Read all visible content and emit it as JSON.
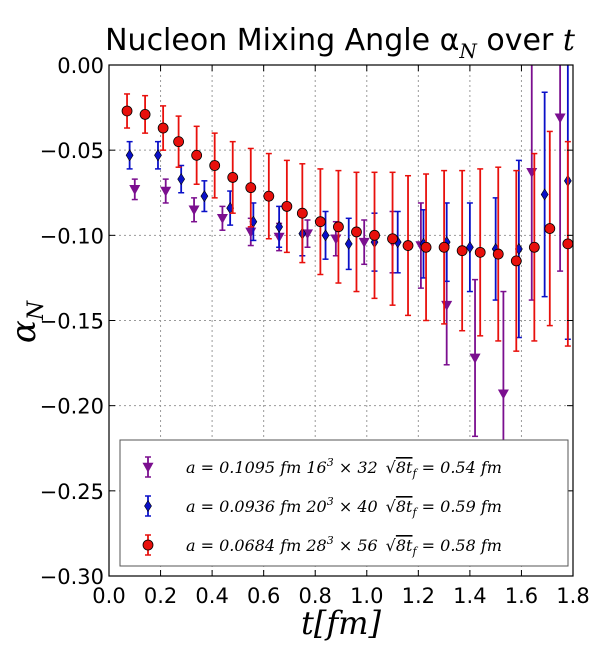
{
  "chart_data": {
    "type": "scatter",
    "title": "Nucleon Mixing Angle α",
    "title_sub": "N",
    "title_suffix": " over ",
    "title_var": "t",
    "xlabel": "t[fm]",
    "ylabel": "α",
    "ylabel_sub": "N",
    "xlim": [
      0.0,
      1.8
    ],
    "ylim": [
      -0.3,
      0.0
    ],
    "grid": true,
    "legend_position": "lower-center",
    "x_ticks": [
      0.0,
      0.2,
      0.4,
      0.6,
      0.8,
      1.0,
      1.2,
      1.4,
      1.6,
      1.8
    ],
    "x_tick_labels": [
      "0.0",
      "0.2",
      "0.4",
      "0.6",
      "0.8",
      "1.0",
      "1.2",
      "1.4",
      "1.6",
      "1.8"
    ],
    "y_ticks": [
      0.0,
      -0.05,
      -0.1,
      -0.15,
      -0.2,
      -0.25,
      -0.3
    ],
    "y_tick_labels": [
      "0.00",
      "−0.05",
      "−0.10",
      "−0.15",
      "−0.20",
      "−0.25",
      "−0.30"
    ],
    "series": [
      {
        "name": "a = 0.1095 fm 16³ × 32 √8t_f = 0.54 fm",
        "legend_main": "a = 0.1095 fm 16",
        "legend_exp": "3",
        "legend_rest": " × 32",
        "legend_sqrt_arg": "8t",
        "legend_sqrt_sub": "f",
        "legend_tail": " = 0.54 fm",
        "color": "#7b0f8f",
        "marker": "triangle-down",
        "points": [
          {
            "x": 0.1,
            "y": -0.073,
            "err": 0.006
          },
          {
            "x": 0.22,
            "y": -0.074,
            "err": 0.007
          },
          {
            "x": 0.33,
            "y": -0.085,
            "err": 0.007
          },
          {
            "x": 0.44,
            "y": -0.09,
            "err": 0.007
          },
          {
            "x": 0.55,
            "y": -0.098,
            "err": 0.008
          },
          {
            "x": 0.66,
            "y": -0.101,
            "err": 0.008
          },
          {
            "x": 0.77,
            "y": -0.099,
            "err": 0.008
          },
          {
            "x": 0.88,
            "y": -0.102,
            "err": 0.01
          },
          {
            "x": 0.99,
            "y": -0.104,
            "err": 0.013
          },
          {
            "x": 1.1,
            "y": -0.104,
            "err": 0.018
          },
          {
            "x": 1.21,
            "y": -0.106,
            "err": 0.025
          },
          {
            "x": 1.31,
            "y": -0.141,
            "err": 0.035
          },
          {
            "x": 1.42,
            "y": -0.172,
            "err": 0.046
          },
          {
            "x": 1.53,
            "y": -0.193,
            "err": 0.06
          },
          {
            "x": 1.64,
            "y": -0.063,
            "err": 0.075
          },
          {
            "x": 1.75,
            "y": -0.031,
            "err": 0.09
          }
        ]
      },
      {
        "name": "a = 0.0936 fm 20³ × 40 √8t_f = 0.59 fm",
        "legend_main": "a = 0.0936 fm 20",
        "legend_exp": "3",
        "legend_rest": " × 40",
        "legend_sqrt_arg": "8t",
        "legend_sqrt_sub": "f",
        "legend_tail": " = 0.59 fm",
        "color": "#0a10c8",
        "marker": "diamond",
        "points": [
          {
            "x": 0.08,
            "y": -0.053,
            "err": 0.008
          },
          {
            "x": 0.19,
            "y": -0.053,
            "err": 0.008
          },
          {
            "x": 0.28,
            "y": -0.067,
            "err": 0.008
          },
          {
            "x": 0.37,
            "y": -0.077,
            "err": 0.009
          },
          {
            "x": 0.47,
            "y": -0.084,
            "err": 0.01
          },
          {
            "x": 0.56,
            "y": -0.092,
            "err": 0.011
          },
          {
            "x": 0.66,
            "y": -0.095,
            "err": 0.012
          },
          {
            "x": 0.75,
            "y": -0.099,
            "err": 0.013
          },
          {
            "x": 0.84,
            "y": -0.1,
            "err": 0.014
          },
          {
            "x": 0.93,
            "y": -0.105,
            "err": 0.015
          },
          {
            "x": 1.03,
            "y": -0.104,
            "err": 0.017
          },
          {
            "x": 1.12,
            "y": -0.104,
            "err": 0.018
          },
          {
            "x": 1.22,
            "y": -0.105,
            "err": 0.02
          },
          {
            "x": 1.31,
            "y": -0.104,
            "err": 0.023
          },
          {
            "x": 1.4,
            "y": -0.107,
            "err": 0.026
          },
          {
            "x": 1.5,
            "y": -0.108,
            "err": 0.03
          },
          {
            "x": 1.59,
            "y": -0.108,
            "err": 0.052
          },
          {
            "x": 1.69,
            "y": -0.076,
            "err": 0.06
          },
          {
            "x": 1.78,
            "y": -0.068,
            "err": 0.093
          }
        ]
      },
      {
        "name": "a = 0.0684 fm 28³ × 56 √8t_f = 0.58 fm",
        "legend_main": "a = 0.0684 fm 28",
        "legend_exp": "3",
        "legend_rest": " × 56",
        "legend_sqrt_arg": "8t",
        "legend_sqrt_sub": "f",
        "legend_tail": " = 0.58 fm",
        "color": "#e8100c",
        "marker": "circle",
        "points": [
          {
            "x": 0.07,
            "y": -0.027,
            "err": 0.01
          },
          {
            "x": 0.14,
            "y": -0.029,
            "err": 0.011
          },
          {
            "x": 0.21,
            "y": -0.037,
            "err": 0.013
          },
          {
            "x": 0.27,
            "y": -0.045,
            "err": 0.015
          },
          {
            "x": 0.34,
            "y": -0.053,
            "err": 0.017
          },
          {
            "x": 0.41,
            "y": -0.059,
            "err": 0.019
          },
          {
            "x": 0.48,
            "y": -0.066,
            "err": 0.021
          },
          {
            "x": 0.55,
            "y": -0.072,
            "err": 0.023
          },
          {
            "x": 0.62,
            "y": -0.077,
            "err": 0.025
          },
          {
            "x": 0.69,
            "y": -0.083,
            "err": 0.027
          },
          {
            "x": 0.75,
            "y": -0.087,
            "err": 0.029
          },
          {
            "x": 0.82,
            "y": -0.092,
            "err": 0.031
          },
          {
            "x": 0.89,
            "y": -0.095,
            "err": 0.033
          },
          {
            "x": 0.96,
            "y": -0.098,
            "err": 0.035
          },
          {
            "x": 1.03,
            "y": -0.1,
            "err": 0.037
          },
          {
            "x": 1.1,
            "y": -0.102,
            "err": 0.039
          },
          {
            "x": 1.16,
            "y": -0.106,
            "err": 0.041
          },
          {
            "x": 1.23,
            "y": -0.107,
            "err": 0.043
          },
          {
            "x": 1.3,
            "y": -0.107,
            "err": 0.045
          },
          {
            "x": 1.37,
            "y": -0.109,
            "err": 0.047
          },
          {
            "x": 1.44,
            "y": -0.11,
            "err": 0.049
          },
          {
            "x": 1.51,
            "y": -0.111,
            "err": 0.051
          },
          {
            "x": 1.58,
            "y": -0.115,
            "err": 0.053
          },
          {
            "x": 1.65,
            "y": -0.107,
            "err": 0.055
          },
          {
            "x": 1.71,
            "y": -0.096,
            "err": 0.057
          },
          {
            "x": 1.78,
            "y": -0.105,
            "err": 0.06
          }
        ]
      }
    ]
  }
}
